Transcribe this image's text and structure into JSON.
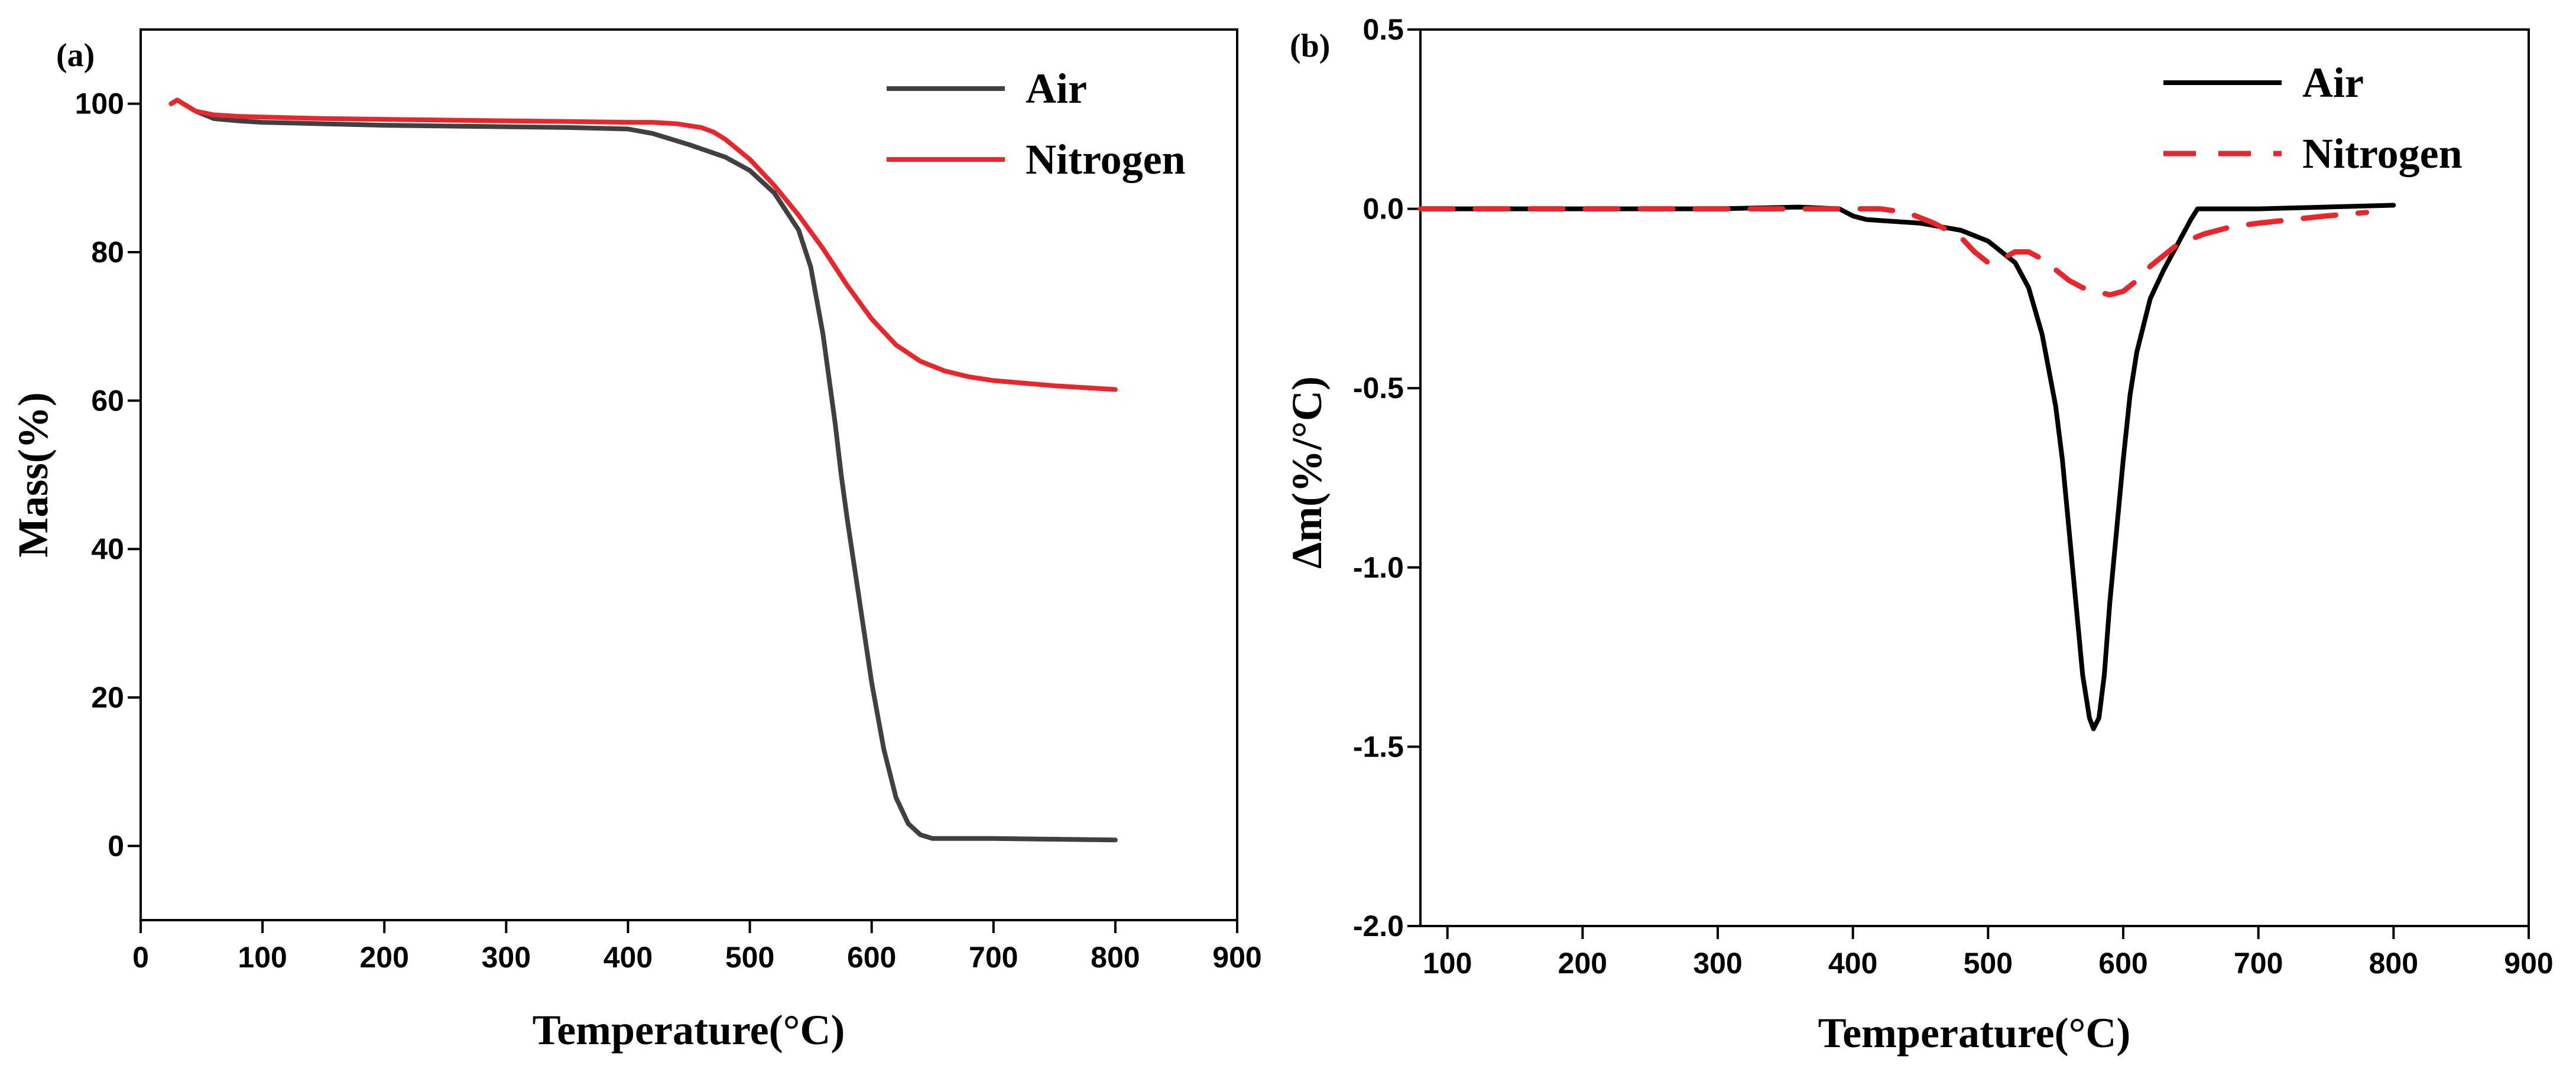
{
  "figure": {
    "colors": {
      "air_a": "#404040",
      "air_b": "#000000",
      "nitrogen": "#e8262b",
      "axis": "#000000"
    }
  },
  "chart_data": [
    {
      "id": "panel_a",
      "type": "line",
      "panel_label": "(a)",
      "xlabel": "Temperature(°C)",
      "ylabel": "Mass(%)",
      "xlim": [
        0,
        900
      ],
      "ylim": [
        -10,
        110
      ],
      "xticks": [
        0,
        100,
        200,
        300,
        400,
        500,
        600,
        700,
        800,
        900
      ],
      "xtick_labels": [
        "0",
        "100",
        "200",
        "300",
        "400",
        "500",
        "600",
        "700",
        "800",
        "900"
      ],
      "yticks": [
        0,
        20,
        40,
        60,
        80,
        100
      ],
      "ytick_labels": [
        "0",
        "20",
        "40",
        "60",
        "80",
        "100"
      ],
      "grid": false,
      "legend_position": "top-right",
      "series": [
        {
          "name": "Air",
          "color_key": "air_a",
          "dash": "solid",
          "x": [
            25,
            30,
            35,
            45,
            60,
            80,
            100,
            150,
            200,
            300,
            350,
            400,
            420,
            450,
            480,
            500,
            520,
            540,
            550,
            560,
            570,
            575,
            580,
            590,
            600,
            610,
            620,
            630,
            640,
            650,
            660,
            700,
            750,
            800
          ],
          "values": [
            100,
            100.5,
            100,
            99,
            98,
            97.7,
            97.5,
            97.3,
            97.1,
            96.9,
            96.8,
            96.6,
            96,
            94.5,
            92.8,
            91,
            88,
            83,
            78,
            69,
            57,
            50,
            44,
            33,
            22,
            13,
            6.5,
            3,
            1.5,
            1,
            1,
            1,
            0.9,
            0.8
          ]
        },
        {
          "name": "Nitrogen",
          "color_key": "nitrogen",
          "dash": "solid",
          "x": [
            25,
            30,
            35,
            45,
            60,
            80,
            100,
            150,
            200,
            300,
            350,
            400,
            420,
            440,
            460,
            470,
            480,
            500,
            520,
            540,
            560,
            580,
            600,
            620,
            640,
            660,
            680,
            700,
            750,
            800
          ],
          "values": [
            100,
            100.5,
            100,
            99,
            98.5,
            98.3,
            98.2,
            98,
            97.9,
            97.7,
            97.6,
            97.5,
            97.5,
            97.3,
            96.8,
            96.2,
            95.2,
            92.5,
            89,
            85,
            80.5,
            75.5,
            71,
            67.5,
            65.3,
            64,
            63.2,
            62.7,
            62,
            61.5
          ]
        }
      ]
    },
    {
      "id": "panel_b",
      "type": "line",
      "panel_label": "(b)",
      "xlabel": "Temperature(°C)",
      "ylabel": "Δm(%/°C)",
      "xlim": [
        80,
        900
      ],
      "ylim": [
        -2.0,
        0.5
      ],
      "xticks": [
        100,
        200,
        300,
        400,
        500,
        600,
        700,
        800,
        900
      ],
      "xtick_labels": [
        "100",
        "200",
        "300",
        "400",
        "500",
        "600",
        "700",
        "800",
        "900"
      ],
      "yticks": [
        -2.0,
        -1.5,
        -1.0,
        -0.5,
        0.0,
        0.5
      ],
      "ytick_labels": [
        "-2.0",
        "-1.5",
        "-1.0",
        "-0.5",
        "0.0",
        "0.5"
      ],
      "grid": false,
      "legend_position": "top-right",
      "series": [
        {
          "name": "Air",
          "color_key": "air_b",
          "dash": "solid",
          "x": [
            80,
            150,
            200,
            300,
            360,
            390,
            400,
            410,
            450,
            480,
            500,
            520,
            530,
            540,
            550,
            555,
            560,
            565,
            570,
            575,
            578,
            582,
            586,
            590,
            595,
            600,
            605,
            610,
            620,
            630,
            640,
            650,
            655,
            660,
            700,
            750,
            800
          ],
          "values": [
            0,
            0,
            0,
            0,
            0.005,
            0,
            -0.02,
            -0.03,
            -0.04,
            -0.06,
            -0.09,
            -0.15,
            -0.22,
            -0.35,
            -0.55,
            -0.7,
            -0.9,
            -1.1,
            -1.3,
            -1.42,
            -1.45,
            -1.42,
            -1.3,
            -1.1,
            -0.9,
            -0.7,
            -0.52,
            -0.4,
            -0.25,
            -0.17,
            -0.1,
            -0.03,
            0,
            0,
            0,
            0.005,
            0.01
          ]
        },
        {
          "name": "Nitrogen",
          "color_key": "nitrogen",
          "dash": "dashed",
          "x": [
            80,
            150,
            200,
            300,
            400,
            420,
            440,
            460,
            480,
            490,
            500,
            510,
            520,
            530,
            540,
            550,
            560,
            570,
            580,
            590,
            600,
            610,
            620,
            630,
            640,
            660,
            680,
            700,
            750,
            780
          ],
          "values": [
            0,
            0,
            0,
            0,
            0,
            0,
            -0.01,
            -0.04,
            -0.08,
            -0.12,
            -0.15,
            -0.14,
            -0.12,
            -0.12,
            -0.14,
            -0.17,
            -0.2,
            -0.22,
            -0.23,
            -0.24,
            -0.23,
            -0.2,
            -0.16,
            -0.13,
            -0.1,
            -0.07,
            -0.05,
            -0.04,
            -0.02,
            -0.01
          ]
        }
      ]
    }
  ]
}
